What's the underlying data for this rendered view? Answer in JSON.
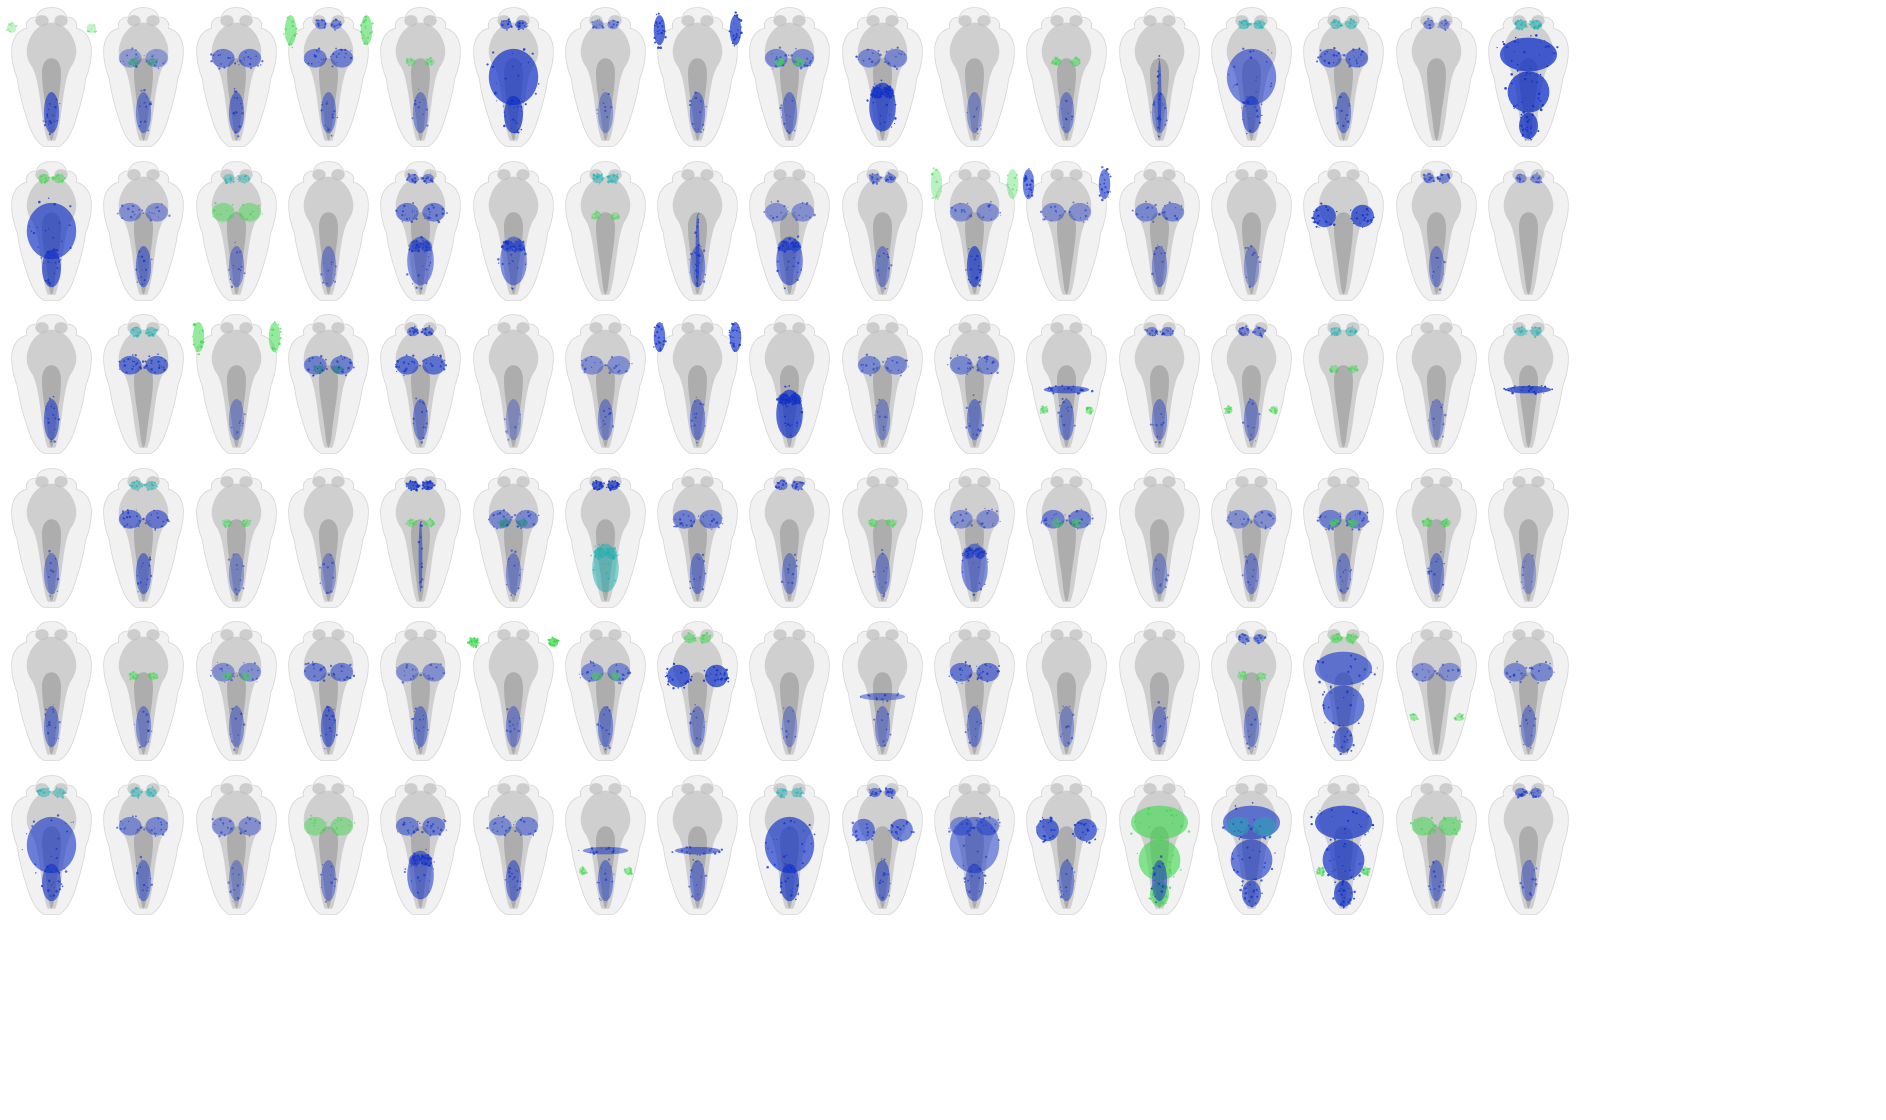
{
  "grid": {
    "rows": 6,
    "columns": 17
  },
  "colors": {
    "background": "#ffffff",
    "brain_outline": "#d4d4d4",
    "brain_tissue": "#b3b3b3",
    "brain_core": "#8c8c8c",
    "label_blue": "#1030c8",
    "label_blue_light": "#5a78e0",
    "label_green": "#3ad84a",
    "label_cyan": "#1ab0b0"
  },
  "tiles": [
    {
      "marks": [
        [
          "hb",
          0.7,
          "b"
        ],
        [
          "eyes",
          0.1,
          "g"
        ]
      ]
    },
    {
      "marks": [
        [
          "mid",
          0.4,
          "g"
        ],
        [
          "hb",
          0.4,
          "b"
        ],
        [
          "mes",
          0.2,
          "b"
        ]
      ]
    },
    {
      "marks": [
        [
          "mes",
          0.5,
          "b"
        ],
        [
          "hb",
          0.5,
          "b"
        ]
      ]
    },
    {
      "marks": [
        [
          "ret",
          0.6,
          "g"
        ],
        [
          "mes",
          0.5,
          "b"
        ],
        [
          "hb",
          0.4,
          "b"
        ],
        [
          "ob",
          0.4,
          "b"
        ]
      ]
    },
    {
      "marks": [
        [
          "mid",
          0.2,
          "g"
        ],
        [
          "hb",
          0.3,
          "b"
        ]
      ]
    },
    {
      "marks": [
        [
          "wide",
          0.9,
          "b"
        ],
        [
          "ob",
          0.6,
          "b"
        ]
      ]
    },
    {
      "marks": [
        [
          "ob",
          0.3,
          "b"
        ],
        [
          "hb",
          0.2,
          "b"
        ]
      ]
    },
    {
      "marks": [
        [
          "ret",
          0.9,
          "b"
        ],
        [
          "hb",
          0.4,
          "b"
        ]
      ]
    },
    {
      "marks": [
        [
          "mes",
          0.4,
          "b"
        ],
        [
          "mid",
          0.4,
          "g"
        ],
        [
          "hb",
          0.4,
          "b"
        ]
      ]
    },
    {
      "marks": [
        [
          "hbv",
          0.9,
          "b"
        ],
        [
          "mes",
          0.4,
          "b"
        ]
      ]
    },
    {
      "marks": [
        [
          "hb",
          0.2,
          "b"
        ]
      ]
    },
    {
      "marks": [
        [
          "mid",
          0.4,
          "g"
        ],
        [
          "hb",
          0.3,
          "b"
        ]
      ]
    },
    {
      "marks": [
        [
          "midline",
          0.6,
          "b"
        ],
        [
          "hb",
          0.3,
          "b"
        ]
      ]
    },
    {
      "marks": [
        [
          "wide",
          0.6,
          "b"
        ],
        [
          "ob",
          0.5,
          "c"
        ]
      ]
    },
    {
      "marks": [
        [
          "mes",
          0.6,
          "b"
        ],
        [
          "ob",
          0.4,
          "c"
        ],
        [
          "hb",
          0.4,
          "b"
        ]
      ]
    },
    {
      "marks": [
        [
          "ob",
          0.3,
          "b"
        ]
      ]
    },
    {
      "marks": [
        [
          "full",
          1.0,
          "b"
        ],
        [
          "ob",
          0.6,
          "c"
        ]
      ]
    },
    {
      "marks": [
        [
          "wide",
          0.8,
          "b"
        ],
        [
          "ob",
          0.4,
          "g"
        ]
      ]
    },
    {
      "marks": [
        [
          "hb",
          0.5,
          "b"
        ],
        [
          "mes",
          0.3,
          "b"
        ]
      ]
    },
    {
      "marks": [
        [
          "mes",
          0.4,
          "g"
        ],
        [
          "hb",
          0.3,
          "b"
        ],
        [
          "ob",
          0.3,
          "c"
        ]
      ]
    },
    {
      "marks": [
        [
          "hb",
          0.3,
          "b"
        ]
      ]
    },
    {
      "marks": [
        [
          "mes",
          0.5,
          "b"
        ],
        [
          "hbv",
          0.5,
          "b"
        ],
        [
          "ob",
          0.4,
          "b"
        ]
      ]
    },
    {
      "marks": [
        [
          "hbv",
          0.5,
          "b"
        ]
      ]
    },
    {
      "marks": [
        [
          "ob",
          0.5,
          "c"
        ],
        [
          "mid",
          0.2,
          "g"
        ]
      ]
    },
    {
      "marks": [
        [
          "midline",
          0.6,
          "b"
        ],
        [
          "hb",
          0.4,
          "b"
        ]
      ]
    },
    {
      "marks": [
        [
          "hbv",
          0.6,
          "b"
        ],
        [
          "mes",
          0.3,
          "b"
        ]
      ]
    },
    {
      "marks": [
        [
          "ob",
          0.4,
          "b"
        ],
        [
          "hb",
          0.3,
          "b"
        ]
      ]
    },
    {
      "marks": [
        [
          "hb",
          0.8,
          "b"
        ],
        [
          "mes",
          0.3,
          "b"
        ],
        [
          "ret",
          0.2,
          "g"
        ]
      ]
    },
    {
      "marks": [
        [
          "ret",
          0.7,
          "b"
        ],
        [
          "mes",
          0.3,
          "b"
        ]
      ]
    },
    {
      "marks": [
        [
          "mes",
          0.4,
          "b"
        ],
        [
          "hb",
          0.3,
          "b"
        ]
      ]
    },
    {
      "marks": [
        [
          "hb",
          0.2,
          "b"
        ]
      ]
    },
    {
      "marks": [
        [
          "tect",
          0.9,
          "b"
        ]
      ]
    },
    {
      "marks": [
        [
          "ob",
          0.4,
          "b"
        ],
        [
          "hb",
          0.3,
          "b"
        ]
      ]
    },
    {
      "marks": [
        [
          "ob",
          0.3,
          "b"
        ]
      ]
    },
    {
      "marks": [
        [
          "hb",
          0.6,
          "b"
        ]
      ]
    },
    {
      "marks": [
        [
          "mes",
          0.7,
          "b"
        ],
        [
          "ob",
          0.4,
          "c"
        ]
      ]
    },
    {
      "marks": [
        [
          "ret",
          0.6,
          "g"
        ],
        [
          "hb",
          0.2,
          "b"
        ]
      ]
    },
    {
      "marks": [
        [
          "mid",
          0.5,
          "g"
        ],
        [
          "mes",
          0.5,
          "b"
        ]
      ]
    },
    {
      "marks": [
        [
          "mes",
          0.7,
          "b"
        ],
        [
          "ob",
          0.5,
          "b"
        ],
        [
          "hb",
          0.4,
          "b"
        ]
      ]
    },
    {
      "marks": [
        [
          "hb",
          0.1,
          "b"
        ]
      ]
    },
    {
      "marks": [
        [
          "mes",
          0.3,
          "b"
        ],
        [
          "hb",
          0.3,
          "b"
        ]
      ]
    },
    {
      "marks": [
        [
          "ret",
          0.8,
          "b"
        ],
        [
          "hb",
          0.4,
          "b"
        ]
      ]
    },
    {
      "marks": [
        [
          "hbv",
          0.9,
          "b"
        ]
      ]
    },
    {
      "marks": [
        [
          "mes",
          0.4,
          "b"
        ],
        [
          "hb",
          0.2,
          "b"
        ]
      ]
    },
    {
      "marks": [
        [
          "mes",
          0.4,
          "b"
        ],
        [
          "hb",
          0.4,
          "b"
        ]
      ]
    },
    {
      "marks": [
        [
          "band",
          0.7,
          "b"
        ],
        [
          "hb",
          0.4,
          "b"
        ],
        [
          "side",
          0.4,
          "g"
        ]
      ]
    },
    {
      "marks": [
        [
          "ob",
          0.4,
          "b"
        ],
        [
          "hb",
          0.3,
          "b"
        ]
      ]
    },
    {
      "marks": [
        [
          "ob",
          0.4,
          "b"
        ],
        [
          "side",
          0.4,
          "g"
        ],
        [
          "hb",
          0.3,
          "b"
        ]
      ]
    },
    {
      "marks": [
        [
          "ob",
          0.3,
          "c"
        ],
        [
          "mid",
          0.3,
          "g"
        ]
      ]
    },
    {
      "marks": [
        [
          "hb",
          0.2,
          "b"
        ]
      ]
    },
    {
      "marks": [
        [
          "band",
          0.9,
          "b"
        ],
        [
          "ob",
          0.4,
          "c"
        ]
      ]
    },
    {
      "marks": [
        [
          "hb",
          0.3,
          "b"
        ]
      ]
    },
    {
      "marks": [
        [
          "mes",
          0.6,
          "b"
        ],
        [
          "hb",
          0.5,
          "b"
        ],
        [
          "ob",
          0.4,
          "c"
        ]
      ]
    },
    {
      "marks": [
        [
          "mid",
          0.3,
          "g"
        ],
        [
          "hb",
          0.2,
          "b"
        ]
      ]
    },
    {
      "marks": [
        [
          "hb",
          0.2,
          "b"
        ]
      ]
    },
    {
      "marks": [
        [
          "ob",
          0.9,
          "b"
        ],
        [
          "midline",
          0.5,
          "b"
        ],
        [
          "mid",
          0.3,
          "g"
        ]
      ]
    },
    {
      "marks": [
        [
          "mid",
          0.6,
          "g"
        ],
        [
          "mes",
          0.4,
          "b"
        ],
        [
          "hb",
          0.3,
          "b"
        ]
      ]
    },
    {
      "marks": [
        [
          "ob",
          0.9,
          "b"
        ],
        [
          "hbv",
          0.5,
          "c"
        ]
      ]
    },
    {
      "marks": [
        [
          "mes",
          0.5,
          "b"
        ],
        [
          "hb",
          0.4,
          "b"
        ]
      ]
    },
    {
      "marks": [
        [
          "ob",
          0.5,
          "b"
        ],
        [
          "hb",
          0.3,
          "b"
        ]
      ]
    },
    {
      "marks": [
        [
          "mid",
          0.4,
          "g"
        ],
        [
          "hb",
          0.3,
          "b"
        ]
      ]
    },
    {
      "marks": [
        [
          "hbv",
          0.5,
          "b"
        ],
        [
          "mes",
          0.3,
          "b"
        ]
      ]
    },
    {
      "marks": [
        [
          "mes",
          0.5,
          "b"
        ],
        [
          "mid",
          0.3,
          "g"
        ]
      ]
    },
    {
      "marks": [
        [
          "hb",
          0.2,
          "b"
        ]
      ]
    },
    {
      "marks": [
        [
          "mes",
          0.3,
          "b"
        ],
        [
          "hb",
          0.3,
          "b"
        ]
      ]
    },
    {
      "marks": [
        [
          "mes",
          0.5,
          "b"
        ],
        [
          "mid",
          0.4,
          "g"
        ],
        [
          "hb",
          0.3,
          "b"
        ]
      ]
    },
    {
      "marks": [
        [
          "mid",
          0.5,
          "g"
        ],
        [
          "hb",
          0.4,
          "b"
        ]
      ]
    },
    {
      "marks": [
        [
          "hb",
          0.1,
          "b"
        ]
      ]
    },
    {
      "marks": [
        [
          "hb",
          0.4,
          "b"
        ]
      ]
    },
    {
      "marks": [
        [
          "mid",
          0.4,
          "g"
        ],
        [
          "hb",
          0.3,
          "b"
        ]
      ]
    },
    {
      "marks": [
        [
          "mes",
          0.3,
          "b"
        ],
        [
          "hb",
          0.3,
          "b"
        ],
        [
          "mid",
          0.2,
          "g"
        ]
      ]
    },
    {
      "marks": [
        [
          "mes",
          0.5,
          "b"
        ],
        [
          "hb",
          0.6,
          "b"
        ]
      ]
    },
    {
      "marks": [
        [
          "mes",
          0.3,
          "b"
        ],
        [
          "hb",
          0.4,
          "b"
        ]
      ]
    },
    {
      "marks": [
        [
          "eyes",
          0.9,
          "g"
        ],
        [
          "hb",
          0.3,
          "b"
        ]
      ]
    },
    {
      "marks": [
        [
          "mes",
          0.4,
          "b"
        ],
        [
          "mid",
          0.3,
          "g"
        ],
        [
          "hb",
          0.4,
          "b"
        ]
      ]
    },
    {
      "marks": [
        [
          "tect",
          0.9,
          "b"
        ],
        [
          "ob",
          0.4,
          "g"
        ],
        [
          "hb",
          0.3,
          "b"
        ]
      ]
    },
    {
      "marks": [
        [
          "hb",
          0.2,
          "b"
        ]
      ]
    },
    {
      "marks": [
        [
          "band",
          0.4,
          "b"
        ],
        [
          "hb",
          0.3,
          "b"
        ]
      ]
    },
    {
      "marks": [
        [
          "mes",
          0.6,
          "b"
        ],
        [
          "hb",
          0.4,
          "b"
        ]
      ]
    },
    {
      "marks": [
        [
          "hb",
          0.2,
          "b"
        ]
      ]
    },
    {
      "marks": [
        [
          "hb",
          0.3,
          "b"
        ]
      ]
    },
    {
      "marks": [
        [
          "ob",
          0.4,
          "b"
        ],
        [
          "mid",
          0.3,
          "g"
        ],
        [
          "hb",
          0.3,
          "b"
        ]
      ]
    },
    {
      "marks": [
        [
          "full",
          0.7,
          "b"
        ],
        [
          "ob",
          0.5,
          "g"
        ]
      ]
    },
    {
      "marks": [
        [
          "mes",
          0.3,
          "b"
        ],
        [
          "side",
          0.3,
          "g"
        ]
      ]
    },
    {
      "marks": [
        [
          "mes",
          0.4,
          "b"
        ],
        [
          "hb",
          0.3,
          "b"
        ]
      ]
    },
    {
      "marks": [
        [
          "wide",
          0.7,
          "b"
        ],
        [
          "ob",
          0.4,
          "c"
        ]
      ]
    },
    {
      "marks": [
        [
          "mes",
          0.4,
          "b"
        ],
        [
          "ob",
          0.4,
          "c"
        ],
        [
          "hb",
          0.4,
          "b"
        ]
      ]
    },
    {
      "marks": [
        [
          "mes",
          0.3,
          "b"
        ],
        [
          "hb",
          0.2,
          "b"
        ]
      ]
    },
    {
      "marks": [
        [
          "mes",
          0.4,
          "g"
        ],
        [
          "hb",
          0.3,
          "b"
        ]
      ]
    },
    {
      "marks": [
        [
          "mes",
          0.5,
          "b"
        ],
        [
          "hbv",
          0.6,
          "b"
        ]
      ]
    },
    {
      "marks": [
        [
          "mes",
          0.4,
          "b"
        ],
        [
          "hb",
          0.5,
          "b"
        ]
      ]
    },
    {
      "marks": [
        [
          "band",
          0.5,
          "b"
        ],
        [
          "side",
          0.4,
          "g"
        ],
        [
          "hb",
          0.4,
          "b"
        ]
      ]
    },
    {
      "marks": [
        [
          "band",
          0.6,
          "b"
        ],
        [
          "hb",
          0.4,
          "b"
        ]
      ]
    },
    {
      "marks": [
        [
          "wide",
          0.8,
          "b"
        ],
        [
          "ob",
          0.4,
          "c"
        ]
      ]
    },
    {
      "marks": [
        [
          "tect",
          0.6,
          "b"
        ],
        [
          "hb",
          0.5,
          "b"
        ],
        [
          "ob",
          0.5,
          "b"
        ]
      ]
    },
    {
      "marks": [
        [
          "wide",
          0.5,
          "b"
        ],
        [
          "mes",
          0.4,
          "b"
        ]
      ]
    },
    {
      "marks": [
        [
          "tect",
          0.8,
          "b"
        ],
        [
          "hb",
          0.4,
          "b"
        ]
      ]
    },
    {
      "marks": [
        [
          "full",
          0.7,
          "g"
        ],
        [
          "hb",
          0.5,
          "b"
        ]
      ]
    },
    {
      "marks": [
        [
          "full",
          0.7,
          "b"
        ],
        [
          "mes",
          0.4,
          "c"
        ]
      ]
    },
    {
      "marks": [
        [
          "full",
          0.9,
          "b"
        ],
        [
          "side",
          0.5,
          "g"
        ]
      ]
    },
    {
      "marks": [
        [
          "mes",
          0.5,
          "g"
        ],
        [
          "hb",
          0.4,
          "b"
        ]
      ]
    },
    {
      "marks": [
        [
          "ob",
          0.5,
          "b"
        ],
        [
          "hb",
          0.3,
          "b"
        ]
      ]
    }
  ]
}
